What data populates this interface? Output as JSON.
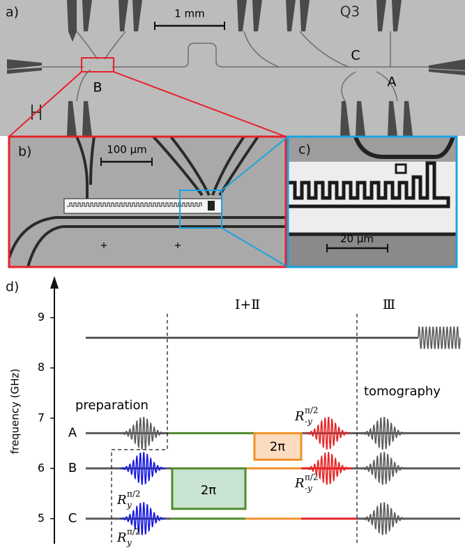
{
  "panel_a": {
    "label": "a)",
    "scale_bar": "1 mm",
    "chip_label": "Q3",
    "qubit_labels": [
      "C",
      "A",
      "B"
    ]
  },
  "panel_b": {
    "label": "b)",
    "scale_bar": "100 μm"
  },
  "panel_c": {
    "label": "c)",
    "scale_bar": "20 μm"
  },
  "panel_d": {
    "label": "d)",
    "y_axis_label": "frequency (GHz)",
    "ylim": [
      4.5,
      9.8
    ],
    "yticks": [
      5,
      6,
      7,
      8,
      9
    ],
    "levels": [
      {
        "name": "A",
        "frequency": 6.7
      },
      {
        "name": "B",
        "frequency": 6.0
      },
      {
        "name": "C",
        "frequency": 5.0
      }
    ],
    "drive_frequency": 8.6,
    "stage_labels": [
      "Ⅰ+Ⅱ",
      "Ⅲ"
    ],
    "phase_labels": [
      "preparation",
      "tomography"
    ],
    "box_labels": [
      "2π",
      "2π"
    ],
    "rotation_labels": [
      {
        "base": "R",
        "sub": "-y",
        "sup": "π/2"
      },
      {
        "base": "R",
        "sub": "-y",
        "sup": "π/2"
      },
      {
        "base": "R",
        "sub": "y",
        "sup": "π/2"
      },
      {
        "base": "R",
        "sub": "y",
        "sup": "π/2"
      }
    ]
  }
}
